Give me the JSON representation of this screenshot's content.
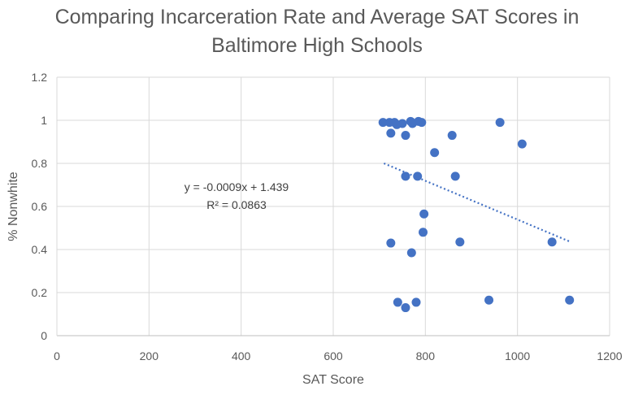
{
  "chart_data": {
    "type": "scatter",
    "title_line1": "Comparing Incarceration Rate and Average SAT Scores in",
    "title_line2": "Baltimore High Schools",
    "xlabel": "SAT Score",
    "ylabel": "% Nonwhite",
    "xlim": [
      0,
      1200
    ],
    "ylim": [
      0,
      1.2
    ],
    "xticks": [
      0,
      200,
      400,
      600,
      800,
      1000,
      1200
    ],
    "yticks": [
      0,
      0.2,
      0.4,
      0.6,
      0.8,
      1,
      1.2
    ],
    "grid": true,
    "marker_color": "#4472C4",
    "points": [
      {
        "x": 708,
        "y": 0.99
      },
      {
        "x": 722,
        "y": 0.99
      },
      {
        "x": 733,
        "y": 0.99
      },
      {
        "x": 738,
        "y": 0.98
      },
      {
        "x": 750,
        "y": 0.985
      },
      {
        "x": 768,
        "y": 0.995
      },
      {
        "x": 772,
        "y": 0.985
      },
      {
        "x": 785,
        "y": 0.995
      },
      {
        "x": 792,
        "y": 0.99
      },
      {
        "x": 725,
        "y": 0.94
      },
      {
        "x": 757,
        "y": 0.93
      },
      {
        "x": 858,
        "y": 0.93
      },
      {
        "x": 962,
        "y": 0.99
      },
      {
        "x": 820,
        "y": 0.85
      },
      {
        "x": 1010,
        "y": 0.89
      },
      {
        "x": 757,
        "y": 0.74
      },
      {
        "x": 783,
        "y": 0.74
      },
      {
        "x": 865,
        "y": 0.74
      },
      {
        "x": 797,
        "y": 0.565
      },
      {
        "x": 795,
        "y": 0.48
      },
      {
        "x": 725,
        "y": 0.43
      },
      {
        "x": 875,
        "y": 0.435
      },
      {
        "x": 1075,
        "y": 0.435
      },
      {
        "x": 770,
        "y": 0.385
      },
      {
        "x": 740,
        "y": 0.155
      },
      {
        "x": 757,
        "y": 0.13
      },
      {
        "x": 780,
        "y": 0.155
      },
      {
        "x": 938,
        "y": 0.165
      },
      {
        "x": 1113,
        "y": 0.165
      }
    ],
    "trendline": {
      "type": "linear",
      "slope": -0.0009,
      "intercept": 1.439,
      "x_range": [
        710,
        1113
      ],
      "color": "#4472C4",
      "style": "dotted",
      "equation_text": "y = -0.0009x + 1.439",
      "r2_text": "R² = 0.0863"
    }
  }
}
